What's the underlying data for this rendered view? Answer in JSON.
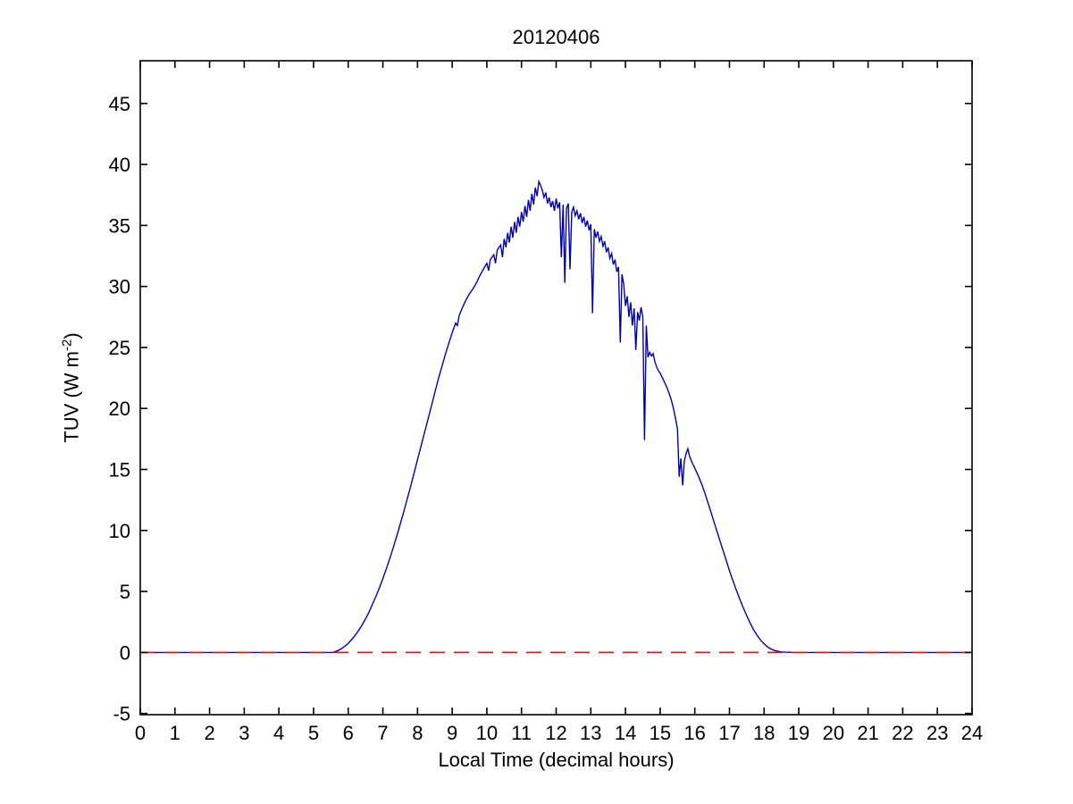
{
  "figure": {
    "title": "20120406",
    "xlabel": "Local Time (decimal hours)",
    "ylabel": {
      "prefix": "TUV (W m",
      "superscript": "-2",
      "suffix": ")"
    }
  },
  "colors": {
    "line": "#0000b0",
    "dashed": "#cc2222",
    "axis": "#000000",
    "background": "#ffffff"
  },
  "chart_data": {
    "type": "line",
    "title": "20120406",
    "xlabel": "Local Time (decimal hours)",
    "ylabel": "TUV (W m^-2)",
    "xlim": [
      0,
      24
    ],
    "ylim": [
      -5.1,
      48.5
    ],
    "x_ticks": [
      0,
      1,
      2,
      3,
      4,
      5,
      6,
      7,
      8,
      9,
      10,
      11,
      12,
      13,
      14,
      15,
      16,
      17,
      18,
      19,
      20,
      21,
      22,
      23,
      24
    ],
    "y_ticks": [
      -5,
      0,
      5,
      10,
      15,
      20,
      25,
      30,
      35,
      40,
      45
    ],
    "grid": false,
    "legend_position": "none",
    "series": [
      {
        "name": "tuv-irradiance-line",
        "color": "#0000b0",
        "line_style": "solid",
        "points": [
          [
            0,
            0
          ],
          [
            5.55,
            0
          ],
          [
            5.6,
            0.05
          ],
          [
            5.7,
            0.15
          ],
          [
            5.8,
            0.3
          ],
          [
            5.9,
            0.5
          ],
          [
            6.0,
            0.75
          ],
          [
            6.1,
            1.05
          ],
          [
            6.2,
            1.4
          ],
          [
            6.3,
            1.8
          ],
          [
            6.4,
            2.25
          ],
          [
            6.5,
            2.75
          ],
          [
            6.6,
            3.3
          ],
          [
            6.7,
            3.95
          ],
          [
            6.8,
            4.6
          ],
          [
            6.9,
            5.3
          ],
          [
            7.0,
            6.05
          ],
          [
            7.1,
            6.85
          ],
          [
            7.2,
            7.7
          ],
          [
            7.3,
            8.6
          ],
          [
            7.4,
            9.55
          ],
          [
            7.5,
            10.5
          ],
          [
            7.6,
            11.5
          ],
          [
            7.7,
            12.55
          ],
          [
            7.8,
            13.6
          ],
          [
            7.9,
            14.7
          ],
          [
            8.0,
            15.8
          ],
          [
            8.1,
            16.9
          ],
          [
            8.2,
            18.0
          ],
          [
            8.3,
            19.1
          ],
          [
            8.4,
            20.2
          ],
          [
            8.5,
            21.3
          ],
          [
            8.6,
            22.4
          ],
          [
            8.7,
            23.4
          ],
          [
            8.8,
            24.4
          ],
          [
            8.9,
            25.3
          ],
          [
            9.0,
            26.2
          ],
          [
            9.1,
            27.0
          ],
          [
            9.15,
            26.8
          ],
          [
            9.2,
            27.6
          ],
          [
            9.3,
            28.3
          ],
          [
            9.4,
            28.9
          ],
          [
            9.5,
            29.4
          ],
          [
            9.6,
            29.8
          ],
          [
            9.7,
            30.3
          ],
          [
            9.8,
            30.9
          ],
          [
            9.9,
            31.4
          ],
          [
            10.0,
            31.9
          ],
          [
            10.05,
            31.3
          ],
          [
            10.1,
            32.2
          ],
          [
            10.2,
            32.6
          ],
          [
            10.25,
            31.9
          ],
          [
            10.3,
            33.0
          ],
          [
            10.4,
            33.4
          ],
          [
            10.45,
            32.4
          ],
          [
            10.5,
            33.9
          ],
          [
            10.55,
            33.2
          ],
          [
            10.6,
            34.4
          ],
          [
            10.65,
            33.6
          ],
          [
            10.7,
            34.9
          ],
          [
            10.75,
            34.0
          ],
          [
            10.8,
            35.3
          ],
          [
            10.85,
            34.4
          ],
          [
            10.9,
            35.7
          ],
          [
            10.95,
            34.9
          ],
          [
            11.0,
            36.1
          ],
          [
            11.05,
            35.3
          ],
          [
            11.1,
            36.6
          ],
          [
            11.15,
            35.7
          ],
          [
            11.2,
            37.1
          ],
          [
            11.25,
            36.2
          ],
          [
            11.3,
            37.6
          ],
          [
            11.35,
            36.7
          ],
          [
            11.4,
            38.1
          ],
          [
            11.45,
            37.4
          ],
          [
            11.5,
            38.6
          ],
          [
            11.55,
            38.3
          ],
          [
            11.6,
            37.9
          ],
          [
            11.65,
            37.3
          ],
          [
            11.7,
            37.7
          ],
          [
            11.75,
            36.8
          ],
          [
            11.8,
            37.3
          ],
          [
            11.85,
            36.5
          ],
          [
            11.9,
            37.0
          ],
          [
            11.95,
            36.2
          ],
          [
            12.0,
            37.2
          ],
          [
            12.05,
            36.4
          ],
          [
            12.1,
            36.9
          ],
          [
            12.15,
            32.4
          ],
          [
            12.2,
            36.7
          ],
          [
            12.25,
            30.3
          ],
          [
            12.3,
            36.4
          ],
          [
            12.35,
            36.8
          ],
          [
            12.4,
            31.4
          ],
          [
            12.45,
            36.1
          ],
          [
            12.5,
            36.5
          ],
          [
            12.55,
            35.8
          ],
          [
            12.6,
            36.2
          ],
          [
            12.65,
            35.5
          ],
          [
            12.7,
            36.0
          ],
          [
            12.75,
            35.2
          ],
          [
            12.8,
            35.7
          ],
          [
            12.85,
            34.9
          ],
          [
            12.9,
            35.4
          ],
          [
            12.95,
            34.6
          ],
          [
            13.0,
            35.1
          ],
          [
            13.05,
            27.8
          ],
          [
            13.1,
            34.7
          ],
          [
            13.15,
            34.0
          ],
          [
            13.2,
            34.5
          ],
          [
            13.25,
            33.7
          ],
          [
            13.3,
            34.1
          ],
          [
            13.35,
            33.3
          ],
          [
            13.4,
            33.7
          ],
          [
            13.45,
            32.8
          ],
          [
            13.5,
            33.2
          ],
          [
            13.55,
            32.3
          ],
          [
            13.6,
            32.7
          ],
          [
            13.65,
            31.8
          ],
          [
            13.7,
            32.2
          ],
          [
            13.75,
            31.2
          ],
          [
            13.8,
            31.6
          ],
          [
            13.85,
            25.4
          ],
          [
            13.9,
            31.0
          ],
          [
            13.95,
            30.2
          ],
          [
            14.0,
            28.4
          ],
          [
            14.05,
            29.2
          ],
          [
            14.1,
            27.5
          ],
          [
            14.15,
            28.7
          ],
          [
            14.2,
            26.8
          ],
          [
            14.25,
            28.2
          ],
          [
            14.3,
            24.8
          ],
          [
            14.35,
            27.9
          ],
          [
            14.4,
            27.2
          ],
          [
            14.45,
            28.3
          ],
          [
            14.5,
            27.5
          ],
          [
            14.55,
            17.4
          ],
          [
            14.6,
            26.8
          ],
          [
            14.65,
            24.2
          ],
          [
            14.7,
            24.6
          ],
          [
            14.75,
            24.3
          ],
          [
            14.8,
            24.5
          ],
          [
            14.85,
            23.8
          ],
          [
            14.9,
            23.4
          ],
          [
            14.95,
            23.1
          ],
          [
            15.0,
            22.9
          ],
          [
            15.05,
            22.6
          ],
          [
            15.1,
            22.3
          ],
          [
            15.15,
            22.0
          ],
          [
            15.2,
            21.7
          ],
          [
            15.25,
            21.3
          ],
          [
            15.3,
            20.9
          ],
          [
            15.35,
            20.4
          ],
          [
            15.4,
            19.8
          ],
          [
            15.45,
            19.1
          ],
          [
            15.5,
            18.3
          ],
          [
            15.55,
            14.4
          ],
          [
            15.6,
            15.9
          ],
          [
            15.65,
            13.7
          ],
          [
            15.7,
            15.7
          ],
          [
            15.75,
            16.3
          ],
          [
            15.8,
            16.7
          ],
          [
            15.85,
            16.1
          ],
          [
            15.9,
            15.7
          ],
          [
            15.95,
            15.4
          ],
          [
            16.0,
            15.1
          ],
          [
            16.1,
            14.5
          ],
          [
            16.2,
            13.8
          ],
          [
            16.3,
            13.0
          ],
          [
            16.4,
            12.1
          ],
          [
            16.5,
            11.2
          ],
          [
            16.6,
            10.3
          ],
          [
            16.7,
            9.4
          ],
          [
            16.8,
            8.5
          ],
          [
            16.9,
            7.6
          ],
          [
            17.0,
            6.7
          ],
          [
            17.1,
            5.9
          ],
          [
            17.2,
            5.1
          ],
          [
            17.3,
            4.35
          ],
          [
            17.4,
            3.65
          ],
          [
            17.5,
            3.0
          ],
          [
            17.6,
            2.4
          ],
          [
            17.7,
            1.85
          ],
          [
            17.8,
            1.4
          ],
          [
            17.9,
            1.0
          ],
          [
            18.0,
            0.7
          ],
          [
            18.1,
            0.45
          ],
          [
            18.2,
            0.28
          ],
          [
            18.3,
            0.16
          ],
          [
            18.4,
            0.09
          ],
          [
            18.5,
            0.05
          ],
          [
            18.6,
            0.02
          ],
          [
            18.75,
            0.01
          ],
          [
            18.9,
            0
          ],
          [
            24,
            0
          ]
        ]
      },
      {
        "name": "zero-reference-dashed-line",
        "color": "#cc2222",
        "line_style": "dashed",
        "points": [
          [
            0,
            0
          ],
          [
            24,
            0
          ]
        ]
      }
    ]
  }
}
